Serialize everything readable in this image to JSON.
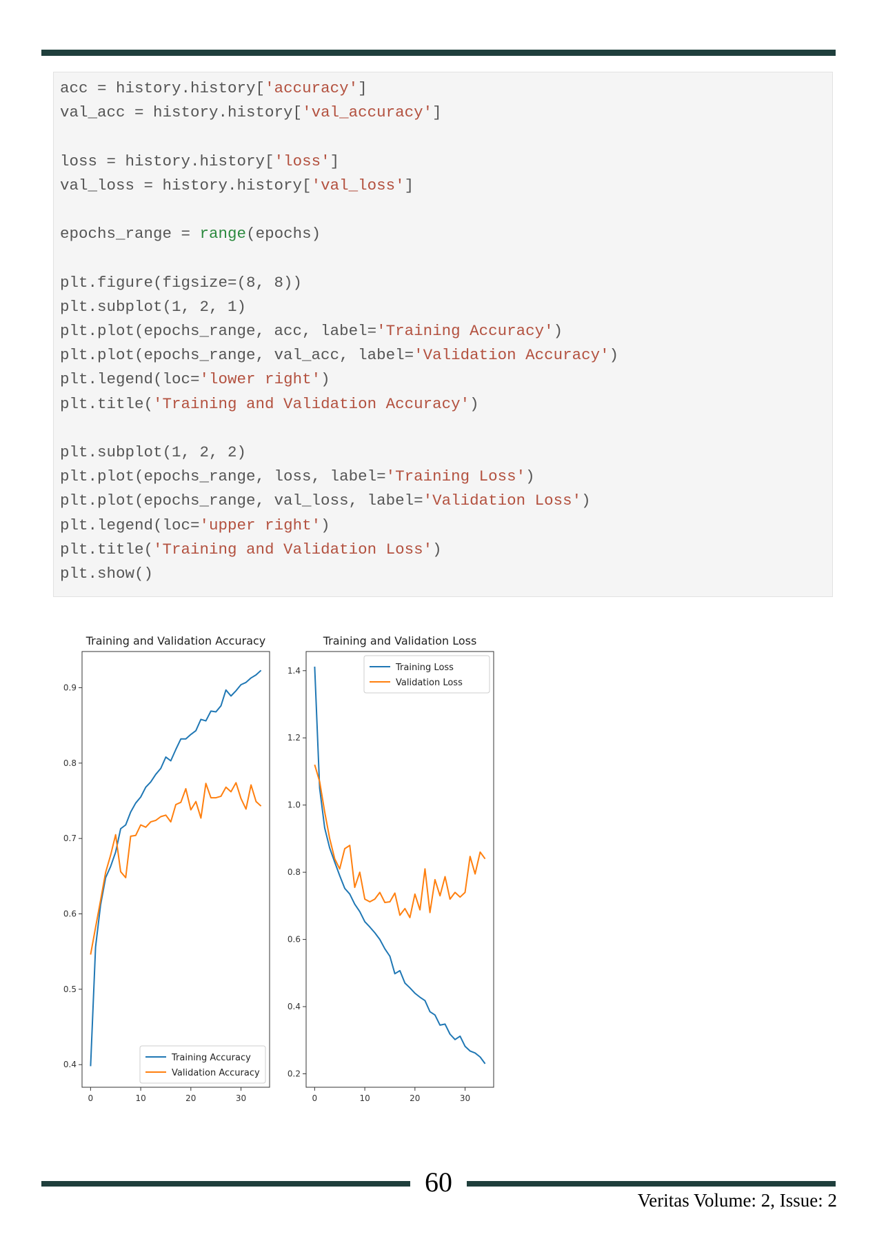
{
  "page": {
    "page_number": "60",
    "journal_line": "Veritas Volume: 2, Issue: 2",
    "rule_color": "#1f3f3c"
  },
  "code": {
    "lines": [
      [
        [
          "acc = history.history[",
          "t"
        ],
        [
          "'accuracy'",
          "s"
        ],
        [
          "]",
          "t"
        ]
      ],
      [
        [
          "val_acc = history.history[",
          "t"
        ],
        [
          "'val_accuracy'",
          "s"
        ],
        [
          "]",
          "t"
        ]
      ],
      [],
      [
        [
          "loss = history.history[",
          "t"
        ],
        [
          "'loss'",
          "s"
        ],
        [
          "]",
          "t"
        ]
      ],
      [
        [
          "val_loss = history.history[",
          "t"
        ],
        [
          "'val_loss'",
          "s"
        ],
        [
          "]",
          "t"
        ]
      ],
      [],
      [
        [
          "epochs_range = ",
          "t"
        ],
        [
          "range",
          "b"
        ],
        [
          "(epochs)",
          "t"
        ]
      ],
      [],
      [
        [
          "plt.figure(figsize=(8, 8))",
          "t"
        ]
      ],
      [
        [
          "plt.subplot(1, 2, 1)",
          "t"
        ]
      ],
      [
        [
          "plt.plot(epochs_range, acc, label=",
          "t"
        ],
        [
          "'Training Accuracy'",
          "s"
        ],
        [
          ")",
          "t"
        ]
      ],
      [
        [
          "plt.plot(epochs_range, val_acc, label=",
          "t"
        ],
        [
          "'Validation Accuracy'",
          "s"
        ],
        [
          ")",
          "t"
        ]
      ],
      [
        [
          "plt.legend(loc=",
          "t"
        ],
        [
          "'lower right'",
          "s"
        ],
        [
          ")",
          "t"
        ]
      ],
      [
        [
          "plt.title(",
          "t"
        ],
        [
          "'Training and Validation Accuracy'",
          "s"
        ],
        [
          ")",
          "t"
        ]
      ],
      [],
      [
        [
          "plt.subplot(1, 2, 2)",
          "t"
        ]
      ],
      [
        [
          "plt.plot(epochs_range, loss, label=",
          "t"
        ],
        [
          "'Training Loss'",
          "s"
        ],
        [
          ")",
          "t"
        ]
      ],
      [
        [
          "plt.plot(epochs_range, val_loss, label=",
          "t"
        ],
        [
          "'Validation Loss'",
          "s"
        ],
        [
          ")",
          "t"
        ]
      ],
      [
        [
          "plt.legend(loc=",
          "t"
        ],
        [
          "'upper right'",
          "s"
        ],
        [
          ")",
          "t"
        ]
      ],
      [
        [
          "plt.title(",
          "t"
        ],
        [
          "'Training and Validation Loss'",
          "s"
        ],
        [
          ")",
          "t"
        ]
      ],
      [
        [
          "plt.show()",
          "t"
        ]
      ]
    ]
  },
  "chart_data": [
    {
      "type": "line",
      "title": "Training and Validation Accuracy",
      "xlabel": "",
      "ylabel": "",
      "xlim": [
        -1.7,
        35.7
      ],
      "ylim": [
        0.37,
        0.948
      ],
      "xticks": [
        0,
        10,
        20,
        30
      ],
      "yticks": [
        0.4,
        0.5,
        0.6,
        0.7,
        0.8,
        0.9
      ],
      "ytick_labels": [
        "0.4",
        "0.5",
        "0.6",
        "0.7",
        "0.8",
        "0.9"
      ],
      "legend_loc": "lower right",
      "grid": false,
      "x": [
        0,
        1,
        2,
        3,
        4,
        5,
        6,
        7,
        8,
        9,
        10,
        11,
        12,
        13,
        14,
        15,
        16,
        17,
        18,
        19,
        20,
        21,
        22,
        23,
        24,
        25,
        26,
        27,
        28,
        29,
        30,
        31,
        32,
        33,
        34
      ],
      "series": [
        {
          "name": "Training Accuracy",
          "color": "#1f77b4",
          "values": [
            0.398,
            0.556,
            0.612,
            0.648,
            0.663,
            0.682,
            0.713,
            0.718,
            0.735,
            0.747,
            0.755,
            0.768,
            0.775,
            0.785,
            0.793,
            0.808,
            0.803,
            0.818,
            0.832,
            0.832,
            0.838,
            0.843,
            0.858,
            0.856,
            0.869,
            0.868,
            0.876,
            0.897,
            0.889,
            0.896,
            0.904,
            0.907,
            0.913,
            0.917,
            0.923
          ]
        },
        {
          "name": "Validation Accuracy",
          "color": "#ff7f0e",
          "values": [
            0.546,
            0.582,
            0.618,
            0.655,
            0.678,
            0.705,
            0.656,
            0.648,
            0.703,
            0.704,
            0.718,
            0.715,
            0.722,
            0.724,
            0.729,
            0.731,
            0.722,
            0.745,
            0.748,
            0.766,
            0.738,
            0.749,
            0.727,
            0.773,
            0.754,
            0.754,
            0.756,
            0.768,
            0.762,
            0.774,
            0.753,
            0.739,
            0.771,
            0.749,
            0.743
          ]
        }
      ]
    },
    {
      "type": "line",
      "title": "Training and Validation Loss",
      "xlabel": "",
      "ylabel": "",
      "xlim": [
        -1.7,
        35.7
      ],
      "ylim": [
        0.16,
        1.457
      ],
      "xticks": [
        0,
        10,
        20,
        30
      ],
      "yticks": [
        0.2,
        0.4,
        0.6,
        0.8,
        1.0,
        1.2,
        1.4
      ],
      "ytick_labels": [
        "0.2",
        "0.4",
        "0.6",
        "0.8",
        "1.0",
        "1.2",
        "1.4"
      ],
      "legend_loc": "upper right",
      "grid": false,
      "x": [
        0,
        1,
        2,
        3,
        4,
        5,
        6,
        7,
        8,
        9,
        10,
        11,
        12,
        13,
        14,
        15,
        16,
        17,
        18,
        19,
        20,
        21,
        22,
        23,
        24,
        25,
        26,
        27,
        28,
        29,
        30,
        31,
        32,
        33,
        34
      ],
      "series": [
        {
          "name": "Training Loss",
          "color": "#1f77b4",
          "values": [
            1.412,
            1.05,
            0.932,
            0.872,
            0.83,
            0.79,
            0.752,
            0.735,
            0.705,
            0.683,
            0.653,
            0.637,
            0.62,
            0.6,
            0.572,
            0.55,
            0.498,
            0.507,
            0.47,
            0.456,
            0.44,
            0.428,
            0.418,
            0.385,
            0.375,
            0.345,
            0.348,
            0.318,
            0.302,
            0.312,
            0.282,
            0.268,
            0.262,
            0.25,
            0.23
          ]
        },
        {
          "name": "Validation Loss",
          "color": "#ff7f0e",
          "values": [
            1.12,
            1.07,
            0.98,
            0.9,
            0.84,
            0.81,
            0.87,
            0.88,
            0.755,
            0.8,
            0.72,
            0.712,
            0.72,
            0.74,
            0.71,
            0.712,
            0.738,
            0.672,
            0.692,
            0.665,
            0.735,
            0.688,
            0.81,
            0.68,
            0.778,
            0.73,
            0.787,
            0.72,
            0.74,
            0.726,
            0.74,
            0.847,
            0.795,
            0.86,
            0.84
          ]
        }
      ]
    }
  ]
}
